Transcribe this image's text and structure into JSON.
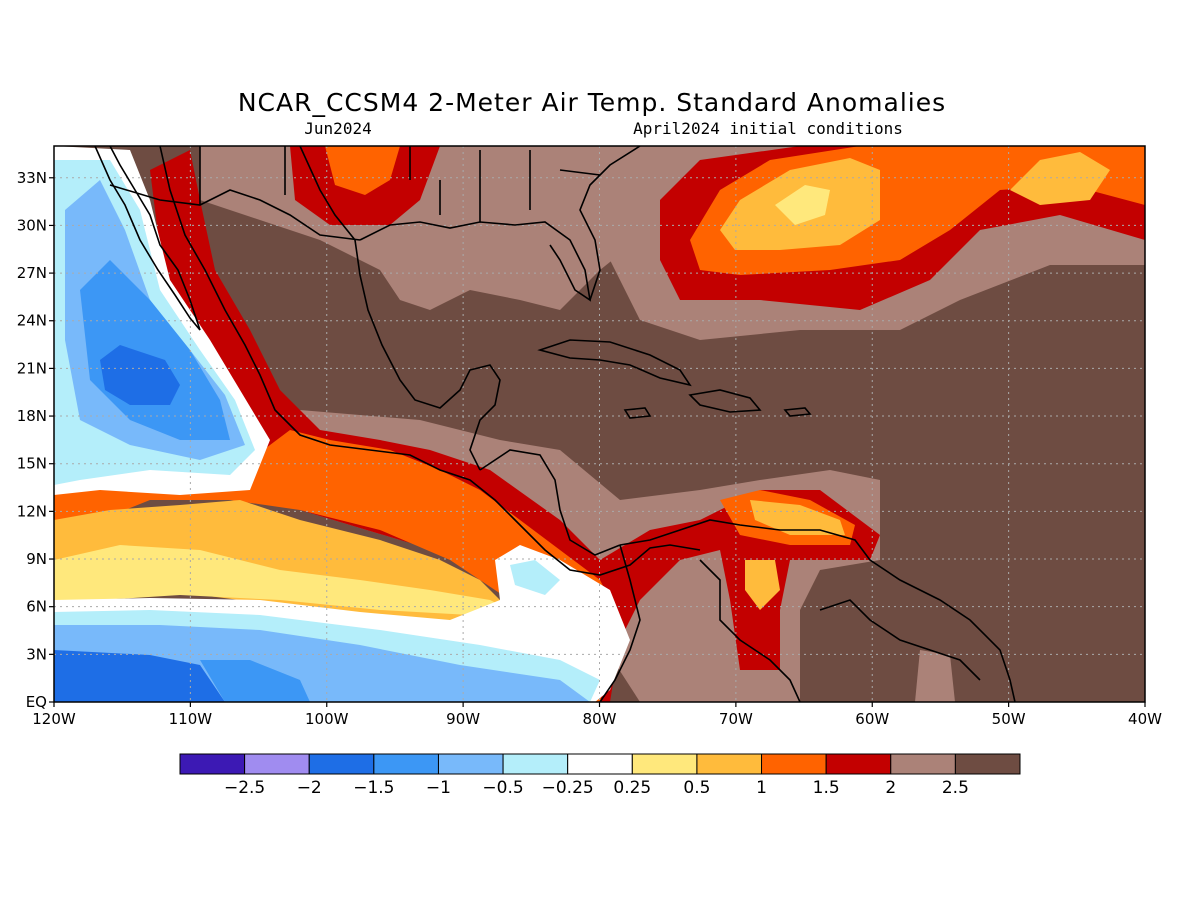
{
  "header": {
    "title": "NCAR_CCSM4 2-Meter Air Temp. Standard Anomalies",
    "valid_month": "Jun2024",
    "initial_conditions": "April2024 initial conditions"
  },
  "map": {
    "lon_range": [
      -120,
      -40
    ],
    "lat_range": [
      0,
      35
    ],
    "lat_ticks": [
      {
        "value": 33,
        "label": "33N"
      },
      {
        "value": 30,
        "label": "30N"
      },
      {
        "value": 27,
        "label": "27N"
      },
      {
        "value": 24,
        "label": "24N"
      },
      {
        "value": 21,
        "label": "21N"
      },
      {
        "value": 18,
        "label": "18N"
      },
      {
        "value": 15,
        "label": "15N"
      },
      {
        "value": 12,
        "label": "12N"
      },
      {
        "value": 9,
        "label": "9N"
      },
      {
        "value": 6,
        "label": "6N"
      },
      {
        "value": 3,
        "label": "3N"
      },
      {
        "value": 0,
        "label": "EQ"
      }
    ],
    "lon_ticks": [
      {
        "value": -120,
        "label": "120W"
      },
      {
        "value": -110,
        "label": "110W"
      },
      {
        "value": -100,
        "label": "100W"
      },
      {
        "value": -90,
        "label": "90W"
      },
      {
        "value": -80,
        "label": "80W"
      },
      {
        "value": -70,
        "label": "70W"
      },
      {
        "value": -60,
        "label": "60W"
      },
      {
        "value": -50,
        "label": "50W"
      },
      {
        "value": -40,
        "label": "40W"
      }
    ],
    "grid": "dotted",
    "colors": {
      "ocean_base": "#6e4c42",
      "gt2": "#6e4c42",
      "2_2.5": "#ab8278",
      "1.5_2": "#c30000",
      "1_1.5": "#ff6300",
      "0.5_1": "#ffbb3c",
      "0.25_0.5": "#ffe87c",
      "near0": "#ffffff",
      "m0.25_m0.5": "#b4eefa",
      "m0.5_m1": "#78b9fa",
      "m1_m1.5": "#3c97f5",
      "m1.5_m2": "#1e6ee6",
      "coast": "#000000"
    }
  },
  "colorbar": {
    "colors": [
      "#3c19b4",
      "#a08cf0",
      "#1e6ee6",
      "#3c97f5",
      "#78b9fa",
      "#b4eefa",
      "#ffffff",
      "#ffe87c",
      "#ffbb3c",
      "#ff6300",
      "#c30000",
      "#ab8278",
      "#6e4c42"
    ],
    "labels": [
      "−2.5",
      "−2",
      "−1.5",
      "−1",
      "−0.5",
      "−0.25",
      "0.25",
      "0.5",
      "1",
      "1.5",
      "2",
      "2.5"
    ]
  }
}
